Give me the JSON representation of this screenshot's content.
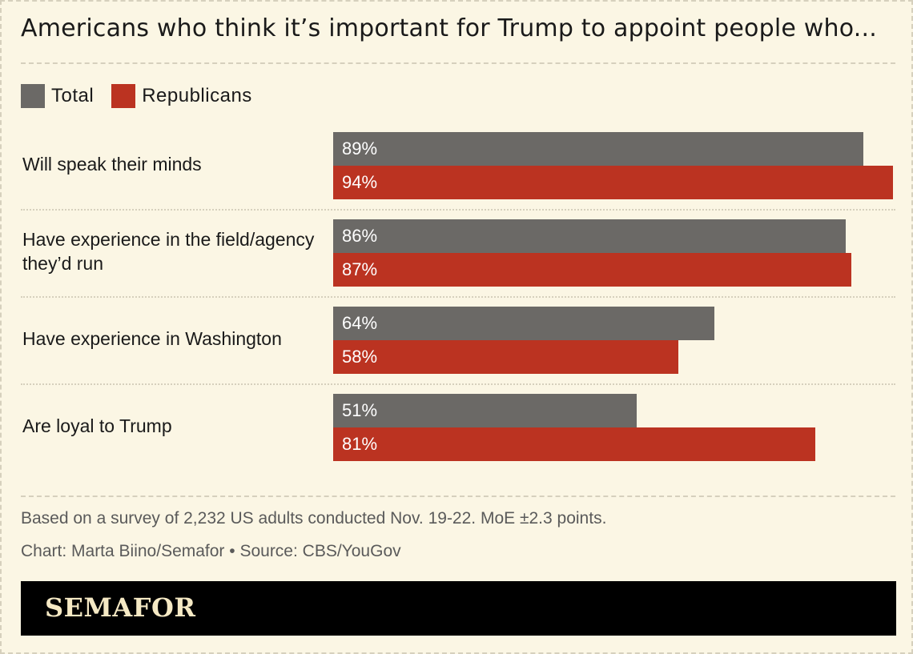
{
  "title": "Americans who think it’s important for Trump to appoint people who...",
  "legend": [
    {
      "name": "Total",
      "color": "#6b6966"
    },
    {
      "name": "Republicans",
      "color": "#bb3321"
    }
  ],
  "chart_data": {
    "type": "bar",
    "orientation": "horizontal",
    "title": "Americans who think it’s important for Trump to appoint people who...",
    "categories": [
      "Will speak their minds",
      "Have experience in the field/agency they’d run",
      "Have experience in Washington",
      "Are loyal to Trump"
    ],
    "series": [
      {
        "name": "Total",
        "values": [
          89,
          86,
          64,
          51
        ],
        "labels": [
          "89%",
          "86%",
          "64%",
          "51%"
        ]
      },
      {
        "name": "Republicans",
        "values": [
          94,
          87,
          58,
          81
        ],
        "labels": [
          "94%",
          "87%",
          "58%",
          "81%"
        ]
      }
    ],
    "xlim": [
      0,
      94
    ],
    "unit": "%",
    "grid": false,
    "legend_position": "top-left"
  },
  "notes": {
    "survey": "Based on a survey of 2,232 US adults conducted Nov. 19-22. MoE ±2.3 points.",
    "credit": "Chart: Marta Biino/Semafor • Source: CBS/YouGov"
  },
  "footer": {
    "logo": "SEMAFOR"
  }
}
